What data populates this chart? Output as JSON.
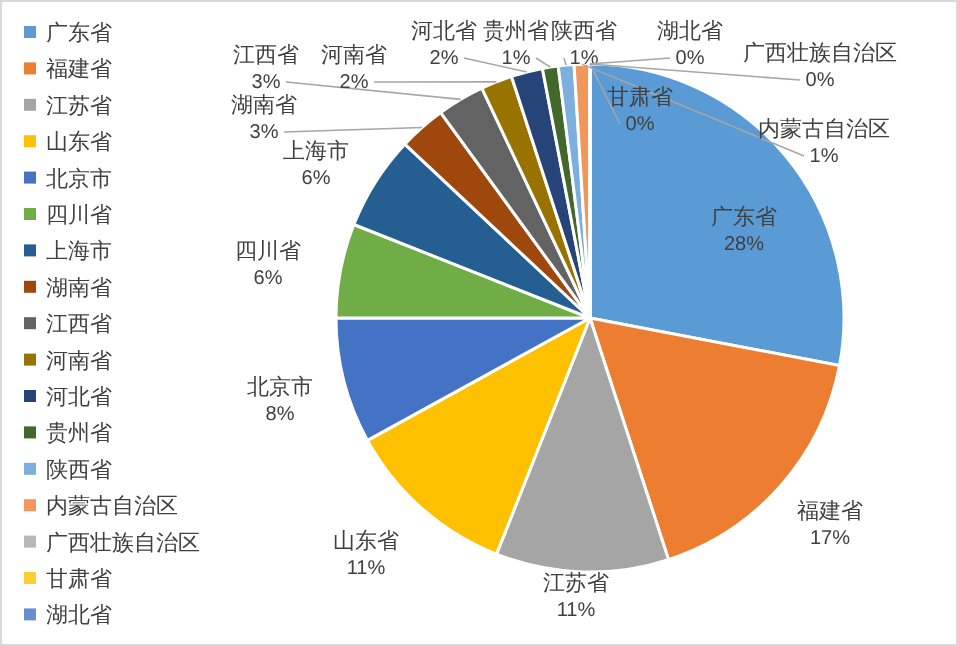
{
  "chart_data": {
    "type": "pie",
    "legend": "left",
    "categories": [
      "广东省",
      "福建省",
      "江苏省",
      "山东省",
      "北京市",
      "四川省",
      "上海市",
      "湖南省",
      "江西省",
      "河南省",
      "河北省",
      "贵州省",
      "陕西省",
      "内蒙古自治区",
      "广西壮族自治区",
      "甘肃省",
      "湖北省"
    ],
    "values": [
      28,
      17,
      11,
      11,
      8,
      6,
      6,
      3,
      3,
      2,
      2,
      1,
      1,
      1,
      0,
      0,
      0
    ],
    "colors": [
      "#5b9bd5",
      "#ed7d31",
      "#a5a5a5",
      "#ffc000",
      "#4472c4",
      "#70ad47",
      "#255e91",
      "#9e480e",
      "#636363",
      "#997300",
      "#264478",
      "#43682b",
      "#7cafdd",
      "#f1975a",
      "#b7b7b7",
      "#ffcd33",
      "#698ed0"
    ],
    "value_labels": [
      "28%",
      "17%",
      "11%",
      "11%",
      "8%",
      "6%",
      "6%",
      "3%",
      "3%",
      "2%",
      "2%",
      "1%",
      "1%",
      "1%",
      "0%",
      "0%",
      "0%"
    ]
  }
}
